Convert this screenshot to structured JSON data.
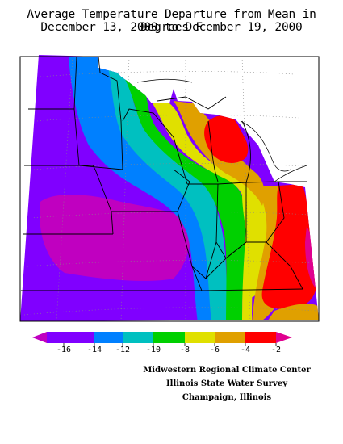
{
  "title": {
    "line1": "Average Temperature Departure from Mean in Degrees F",
    "line2": "December 13, 2000 to December 19, 2000"
  },
  "legend": {
    "labels": [
      "-16",
      "-14",
      "-12",
      "-10",
      "-8",
      "-6",
      "-4",
      "-2"
    ],
    "colors": [
      "#c000c0",
      "#8000ff",
      "#0080ff",
      "#00c0c0",
      "#00d000",
      "#e0e000",
      "#e0a000",
      "#ff0000",
      "#e0008f"
    ]
  },
  "credits": {
    "line1": "Midwestern Regional Climate Center",
    "line2": "Illinois State Water Survey",
    "line3": "Champaign, Illinois"
  }
}
